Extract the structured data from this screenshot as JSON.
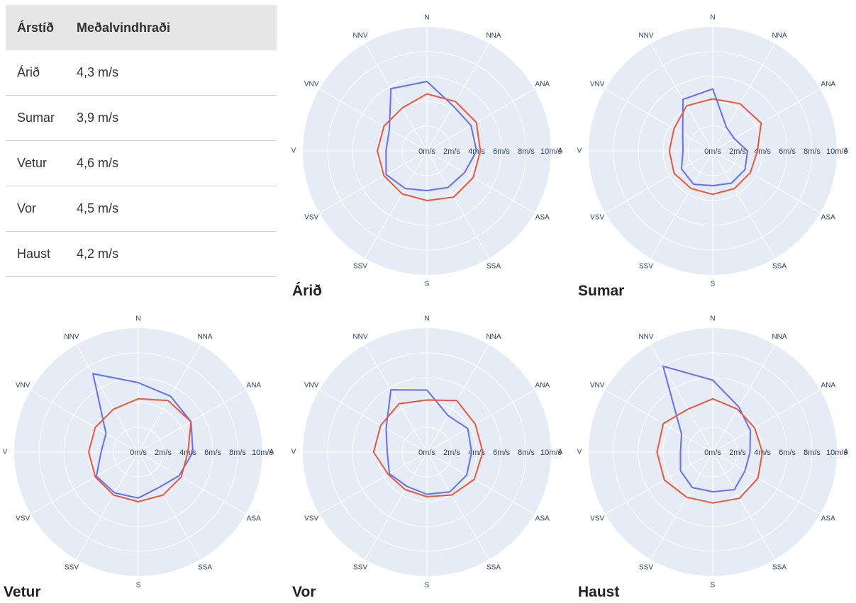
{
  "table": {
    "headers": [
      "Árstíð",
      "Meðalvindhraði"
    ],
    "rows": [
      [
        "Árið",
        "4,3 m/s"
      ],
      [
        "Sumar",
        "3,9 m/s"
      ],
      [
        "Vetur",
        "4,6 m/s"
      ],
      [
        "Vor",
        "4,5 m/s"
      ],
      [
        "Haust",
        "4,2 m/s"
      ]
    ]
  },
  "colors": {
    "background": "#e5ecf6",
    "grid": "#ffffff",
    "series_blue": "#636efa",
    "series_red": "#ef553b",
    "label_text": "#2a3f5f"
  },
  "chart_data": [
    {
      "type": "polar-line",
      "title": "Árið",
      "directions": [
        "N",
        "NNA",
        "ANA",
        "A",
        "ASA",
        "SSA",
        "S",
        "SSV",
        "VSV",
        "V",
        "VNV",
        "NNV"
      ],
      "radial_ticks": [
        "0m/s",
        "2m/s",
        "4m/s",
        "6m/s",
        "8m/s",
        "10m/s"
      ],
      "r_range": [
        0,
        10
      ],
      "series": [
        {
          "values": [
            5.6,
            4.2,
            4.1,
            4.0,
            3.5,
            3.4,
            3.2,
            3.5,
            3.8,
            3.3,
            3.5,
            5.8
          ]
        },
        {
          "values": [
            4.6,
            4.6,
            4.6,
            4.3,
            4.3,
            4.3,
            4.0,
            4.0,
            4.0,
            4.0,
            4.0,
            4.0
          ]
        }
      ]
    },
    {
      "type": "polar-line",
      "title": "Sumar",
      "directions": [
        "N",
        "NNA",
        "ANA",
        "A",
        "ASA",
        "SSA",
        "S",
        "SSV",
        "VSV",
        "V",
        "VNV",
        "NNV"
      ],
      "radial_ticks": [
        "0m/s",
        "2m/s",
        "4m/s",
        "6m/s",
        "8m/s",
        "10m/s"
      ],
      "r_range": [
        0,
        10
      ],
      "series": [
        {
          "values": [
            5.0,
            2.2,
            2.0,
            2.8,
            3.0,
            3.0,
            2.8,
            3.1,
            2.9,
            2.4,
            2.8,
            4.8
          ]
        },
        {
          "values": [
            4.2,
            4.4,
            4.5,
            3.6,
            3.5,
            3.5,
            3.5,
            3.5,
            3.6,
            3.5,
            3.6,
            4.2
          ]
        }
      ]
    },
    {
      "type": "polar-line",
      "title": "Vetur",
      "directions": [
        "N",
        "NNA",
        "ANA",
        "A",
        "ASA",
        "SSA",
        "S",
        "SSV",
        "VSV",
        "V",
        "VNV",
        "NNV"
      ],
      "radial_ticks": [
        "0m/s",
        "2m/s",
        "4m/s",
        "6m/s",
        "8m/s",
        "10m/s"
      ],
      "r_range": [
        0,
        10
      ],
      "series": [
        {
          "values": [
            5.6,
            5.2,
            4.9,
            4.4,
            3.8,
            3.3,
            3.7,
            3.8,
            3.9,
            3.0,
            3.0,
            7.3
          ]
        },
        {
          "values": [
            4.3,
            4.8,
            4.9,
            4.0,
            4.0,
            4.0,
            4.0,
            4.0,
            4.0,
            4.0,
            4.0,
            4.0
          ]
        }
      ]
    },
    {
      "type": "polar-line",
      "title": "Vor",
      "directions": [
        "N",
        "NNA",
        "ANA",
        "A",
        "ASA",
        "SSA",
        "S",
        "SSV",
        "VSV",
        "V",
        "VNV",
        "NNV"
      ],
      "radial_ticks": [
        "0m/s",
        "2m/s",
        "4m/s",
        "6m/s",
        "8m/s",
        "10m/s"
      ],
      "r_range": [
        0,
        10
      ],
      "series": [
        {
          "values": [
            5.0,
            3.4,
            3.8,
            3.6,
            3.7,
            3.7,
            3.4,
            3.2,
            3.5,
            3.2,
            3.8,
            5.8
          ]
        },
        {
          "values": [
            4.2,
            4.8,
            4.5,
            4.5,
            4.4,
            4.0,
            3.6,
            3.5,
            3.6,
            4.3,
            4.3,
            4.5
          ]
        }
      ]
    },
    {
      "type": "polar-line",
      "title": "Haust",
      "directions": [
        "N",
        "NNA",
        "ANA",
        "A",
        "ASA",
        "SSA",
        "S",
        "SSV",
        "VSV",
        "V",
        "VNV",
        "NNV"
      ],
      "radial_ticks": [
        "0m/s",
        "2m/s",
        "4m/s",
        "6m/s",
        "8m/s",
        "10m/s"
      ],
      "r_range": [
        0,
        10
      ],
      "series": [
        {
          "values": [
            5.8,
            4.2,
            3.5,
            3.0,
            3.0,
            3.5,
            3.2,
            3.3,
            3.0,
            2.6,
            2.9,
            8.0
          ]
        },
        {
          "values": [
            4.3,
            4.0,
            3.9,
            4.0,
            4.2,
            4.3,
            4.1,
            4.2,
            4.5,
            4.5,
            4.6,
            4.0
          ]
        }
      ]
    }
  ]
}
